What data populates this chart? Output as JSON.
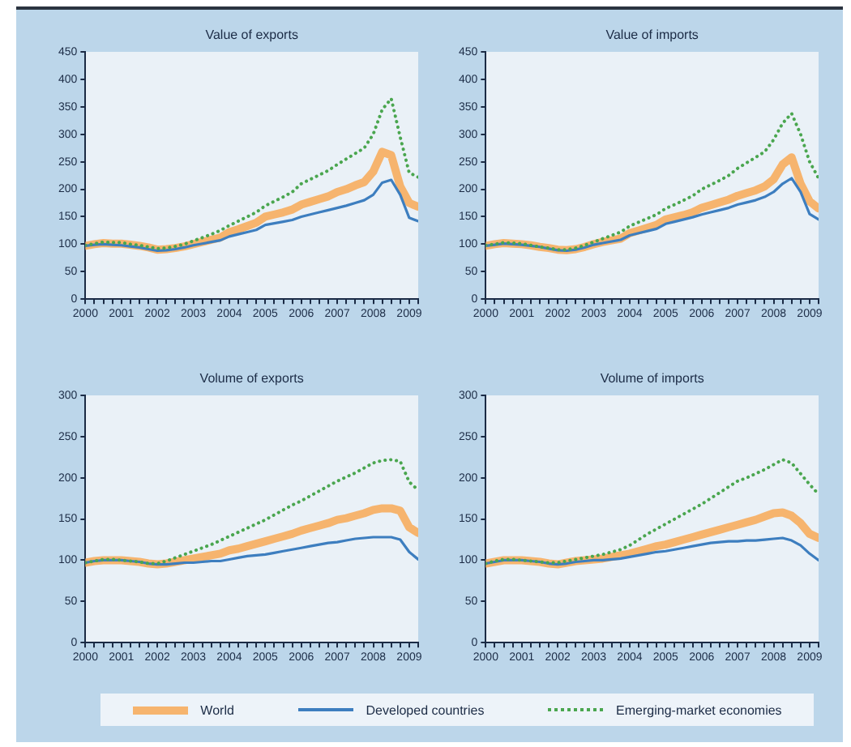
{
  "chart_data": [
    {
      "type": "line",
      "title": "Value of exports",
      "x": [
        2000,
        2000.25,
        2000.5,
        2000.75,
        2001,
        2001.25,
        2001.5,
        2001.75,
        2002,
        2002.25,
        2002.5,
        2002.75,
        2003,
        2003.25,
        2003.5,
        2003.75,
        2004,
        2004.25,
        2004.5,
        2004.75,
        2005,
        2005.25,
        2005.5,
        2005.75,
        2006,
        2006.25,
        2006.5,
        2006.75,
        2007,
        2007.25,
        2007.5,
        2007.75,
        2008,
        2008.25,
        2008.5,
        2008.75,
        2009,
        2009.25
      ],
      "xlim": [
        2000,
        2009.25
      ],
      "xticks": [
        2000,
        {
          "value": 2000.25,
          "label": null
        },
        {
          "value": 2000.5,
          "label": null
        },
        {
          "value": 2000.75,
          "label": null
        },
        2001,
        {
          "value": 2001.25,
          "label": null
        },
        {
          "value": 2001.5,
          "label": null
        },
        {
          "value": 2001.75,
          "label": null
        },
        2002,
        {
          "value": 2002.25,
          "label": null
        },
        {
          "value": 2002.5,
          "label": null
        },
        {
          "value": 2002.75,
          "label": null
        },
        2003,
        {
          "value": 2003.25,
          "label": null
        },
        {
          "value": 2003.5,
          "label": null
        },
        {
          "value": 2003.75,
          "label": null
        },
        2004,
        {
          "value": 2004.25,
          "label": null
        },
        {
          "value": 2004.5,
          "label": null
        },
        {
          "value": 2004.75,
          "label": null
        },
        2005,
        {
          "value": 2005.25,
          "label": null
        },
        {
          "value": 2005.5,
          "label": null
        },
        {
          "value": 2005.75,
          "label": null
        },
        2006,
        {
          "value": 2006.25,
          "label": null
        },
        {
          "value": 2006.5,
          "label": null
        },
        {
          "value": 2006.75,
          "label": null
        },
        2007,
        {
          "value": 2007.25,
          "label": null
        },
        {
          "value": 2007.5,
          "label": null
        },
        {
          "value": 2007.75,
          "label": null
        },
        2008,
        {
          "value": 2008.25,
          "label": null
        },
        {
          "value": 2008.5,
          "label": null
        },
        {
          "value": 2008.75,
          "label": null
        },
        2009,
        {
          "value": 2009.25,
          "label": null
        }
      ],
      "ylim": [
        0,
        450
      ],
      "yticks": [
        0,
        50,
        100,
        150,
        200,
        250,
        300,
        350,
        400,
        450
      ],
      "series": [
        {
          "color": "#f6b46e",
          "line_style": "solid",
          "values": [
            97,
            100,
            102,
            101,
            101,
            99,
            97,
            94,
            90,
            91,
            93,
            96,
            100,
            104,
            108,
            112,
            122,
            127,
            133,
            139,
            150,
            154,
            158,
            163,
            172,
            177,
            182,
            187,
            195,
            200,
            207,
            213,
            232,
            268,
            262,
            205,
            175,
            168
          ]
        },
        {
          "color": "#3d7ebf",
          "line_style": "solid",
          "values": [
            97,
            99,
            100,
            99,
            98,
            96,
            94,
            91,
            88,
            89,
            91,
            94,
            98,
            101,
            104,
            107,
            114,
            118,
            122,
            126,
            135,
            138,
            141,
            144,
            150,
            154,
            158,
            162,
            166,
            170,
            175,
            180,
            190,
            212,
            217,
            190,
            148,
            142
          ]
        },
        {
          "color": "#4aa64f",
          "line_style": "dotted",
          "values": [
            98,
            101,
            104,
            103,
            103,
            100,
            98,
            95,
            92,
            93,
            96,
            100,
            106,
            112,
            118,
            125,
            134,
            142,
            150,
            158,
            170,
            178,
            186,
            195,
            210,
            218,
            226,
            234,
            245,
            255,
            265,
            275,
            300,
            345,
            365,
            295,
            230,
            222
          ]
        }
      ]
    },
    {
      "type": "line",
      "title": "Value of imports",
      "x": [
        2000,
        2000.25,
        2000.5,
        2000.75,
        2001,
        2001.25,
        2001.5,
        2001.75,
        2002,
        2002.25,
        2002.5,
        2002.75,
        2003,
        2003.25,
        2003.5,
        2003.75,
        2004,
        2004.25,
        2004.5,
        2004.75,
        2005,
        2005.25,
        2005.5,
        2005.75,
        2006,
        2006.25,
        2006.5,
        2006.75,
        2007,
        2007.25,
        2007.5,
        2007.75,
        2008,
        2008.25,
        2008.5,
        2008.75,
        2009,
        2009.25
      ],
      "xlim": [
        2000,
        2009.25
      ],
      "xticks": [
        2000,
        {
          "value": 2000.25,
          "label": null
        },
        {
          "value": 2000.5,
          "label": null
        },
        {
          "value": 2000.75,
          "label": null
        },
        2001,
        {
          "value": 2001.25,
          "label": null
        },
        {
          "value": 2001.5,
          "label": null
        },
        {
          "value": 2001.75,
          "label": null
        },
        2002,
        {
          "value": 2002.25,
          "label": null
        },
        {
          "value": 2002.5,
          "label": null
        },
        {
          "value": 2002.75,
          "label": null
        },
        2003,
        {
          "value": 2003.25,
          "label": null
        },
        {
          "value": 2003.5,
          "label": null
        },
        {
          "value": 2003.75,
          "label": null
        },
        2004,
        {
          "value": 2004.25,
          "label": null
        },
        {
          "value": 2004.5,
          "label": null
        },
        {
          "value": 2004.75,
          "label": null
        },
        2005,
        {
          "value": 2005.25,
          "label": null
        },
        {
          "value": 2005.5,
          "label": null
        },
        {
          "value": 2005.75,
          "label": null
        },
        2006,
        {
          "value": 2006.25,
          "label": null
        },
        {
          "value": 2006.5,
          "label": null
        },
        {
          "value": 2006.75,
          "label": null
        },
        2007,
        {
          "value": 2007.25,
          "label": null
        },
        {
          "value": 2007.5,
          "label": null
        },
        {
          "value": 2007.75,
          "label": null
        },
        2008,
        {
          "value": 2008.25,
          "label": null
        },
        {
          "value": 2008.5,
          "label": null
        },
        {
          "value": 2008.75,
          "label": null
        },
        2009,
        {
          "value": 2009.25,
          "label": null
        }
      ],
      "ylim": [
        0,
        450
      ],
      "yticks": [
        0,
        50,
        100,
        150,
        200,
        250,
        300,
        350,
        400,
        450
      ],
      "series": [
        {
          "color": "#f6b46e",
          "line_style": "solid",
          "values": [
            97,
            100,
            102,
            101,
            100,
            98,
            95,
            93,
            90,
            89,
            91,
            95,
            100,
            104,
            107,
            110,
            120,
            125,
            130,
            135,
            145,
            149,
            153,
            158,
            166,
            171,
            176,
            181,
            188,
            193,
            198,
            205,
            218,
            245,
            258,
            210,
            178,
            165
          ]
        },
        {
          "color": "#3d7ebf",
          "line_style": "solid",
          "values": [
            97,
            99,
            101,
            100,
            99,
            97,
            95,
            92,
            89,
            88,
            90,
            94,
            99,
            102,
            105,
            108,
            116,
            120,
            124,
            128,
            137,
            141,
            145,
            149,
            154,
            158,
            162,
            166,
            172,
            176,
            180,
            186,
            195,
            210,
            220,
            195,
            155,
            145
          ]
        },
        {
          "color": "#4aa64f",
          "line_style": "dotted",
          "values": [
            98,
            100,
            103,
            102,
            101,
            98,
            95,
            93,
            90,
            90,
            93,
            98,
            104,
            110,
            116,
            122,
            133,
            140,
            147,
            154,
            165,
            172,
            180,
            188,
            200,
            208,
            216,
            225,
            238,
            248,
            258,
            268,
            290,
            320,
            338,
            300,
            250,
            220
          ]
        }
      ]
    },
    {
      "type": "line",
      "title": "Volume of exports",
      "x": [
        2000,
        2000.25,
        2000.5,
        2000.75,
        2001,
        2001.25,
        2001.5,
        2001.75,
        2002,
        2002.25,
        2002.5,
        2002.75,
        2003,
        2003.25,
        2003.5,
        2003.75,
        2004,
        2004.25,
        2004.5,
        2004.75,
        2005,
        2005.25,
        2005.5,
        2005.75,
        2006,
        2006.25,
        2006.5,
        2006.75,
        2007,
        2007.25,
        2007.5,
        2007.75,
        2008,
        2008.25,
        2008.5,
        2008.75,
        2009,
        2009.25
      ],
      "xlim": [
        2000,
        2009.25
      ],
      "xticks": [
        2000,
        {
          "value": 2000.25,
          "label": null
        },
        {
          "value": 2000.5,
          "label": null
        },
        {
          "value": 2000.75,
          "label": null
        },
        2001,
        {
          "value": 2001.25,
          "label": null
        },
        {
          "value": 2001.5,
          "label": null
        },
        {
          "value": 2001.75,
          "label": null
        },
        2002,
        {
          "value": 2002.25,
          "label": null
        },
        {
          "value": 2002.5,
          "label": null
        },
        {
          "value": 2002.75,
          "label": null
        },
        2003,
        {
          "value": 2003.25,
          "label": null
        },
        {
          "value": 2003.5,
          "label": null
        },
        {
          "value": 2003.75,
          "label": null
        },
        2004,
        {
          "value": 2004.25,
          "label": null
        },
        {
          "value": 2004.5,
          "label": null
        },
        {
          "value": 2004.75,
          "label": null
        },
        2005,
        {
          "value": 2005.25,
          "label": null
        },
        {
          "value": 2005.5,
          "label": null
        },
        {
          "value": 2005.75,
          "label": null
        },
        2006,
        {
          "value": 2006.25,
          "label": null
        },
        {
          "value": 2006.5,
          "label": null
        },
        {
          "value": 2006.75,
          "label": null
        },
        2007,
        {
          "value": 2007.25,
          "label": null
        },
        {
          "value": 2007.5,
          "label": null
        },
        {
          "value": 2007.75,
          "label": null
        },
        2008,
        {
          "value": 2008.25,
          "label": null
        },
        {
          "value": 2008.5,
          "label": null
        },
        {
          "value": 2008.75,
          "label": null
        },
        2009,
        {
          "value": 2009.25,
          "label": null
        }
      ],
      "ylim": [
        0,
        300
      ],
      "yticks": [
        0,
        50,
        100,
        150,
        200,
        250,
        300
      ],
      "series": [
        {
          "color": "#f6b46e",
          "line_style": "solid",
          "values": [
            97,
            99,
            100,
            100,
            100,
            99,
            98,
            96,
            95,
            96,
            98,
            100,
            102,
            104,
            106,
            108,
            112,
            114,
            117,
            120,
            123,
            126,
            129,
            132,
            136,
            139,
            142,
            145,
            149,
            151,
            154,
            157,
            161,
            163,
            163,
            160,
            140,
            133
          ]
        },
        {
          "color": "#3d7ebf",
          "line_style": "solid",
          "values": [
            97,
            99,
            100,
            100,
            100,
            99,
            98,
            96,
            95,
            95,
            96,
            97,
            97,
            98,
            99,
            99,
            101,
            103,
            105,
            106,
            107,
            109,
            111,
            113,
            115,
            117,
            119,
            121,
            122,
            124,
            126,
            127,
            128,
            128,
            128,
            125,
            110,
            101
          ]
        },
        {
          "color": "#4aa64f",
          "line_style": "dotted",
          "values": [
            97,
            99,
            101,
            101,
            100,
            99,
            98,
            96,
            96,
            99,
            103,
            107,
            111,
            115,
            119,
            124,
            129,
            134,
            139,
            144,
            149,
            155,
            161,
            167,
            172,
            178,
            184,
            190,
            196,
            201,
            206,
            212,
            218,
            221,
            222,
            220,
            195,
            185
          ]
        }
      ]
    },
    {
      "type": "line",
      "title": "Volume of imports",
      "legend": "bottom",
      "x": [
        2000,
        2000.25,
        2000.5,
        2000.75,
        2001,
        2001.25,
        2001.5,
        2001.75,
        2002,
        2002.25,
        2002.5,
        2002.75,
        2003,
        2003.25,
        2003.5,
        2003.75,
        2004,
        2004.25,
        2004.5,
        2004.75,
        2005,
        2005.25,
        2005.5,
        2005.75,
        2006,
        2006.25,
        2006.5,
        2006.75,
        2007,
        2007.25,
        2007.5,
        2007.75,
        2008,
        2008.25,
        2008.5,
        2008.75,
        2009,
        2009.25
      ],
      "xlim": [
        2000,
        2009.25
      ],
      "xticks": [
        2000,
        {
          "value": 2000.25,
          "label": null
        },
        {
          "value": 2000.5,
          "label": null
        },
        {
          "value": 2000.75,
          "label": null
        },
        2001,
        {
          "value": 2001.25,
          "label": null
        },
        {
          "value": 2001.5,
          "label": null
        },
        {
          "value": 2001.75,
          "label": null
        },
        2002,
        {
          "value": 2002.25,
          "label": null
        },
        {
          "value": 2002.5,
          "label": null
        },
        {
          "value": 2002.75,
          "label": null
        },
        2003,
        {
          "value": 2003.25,
          "label": null
        },
        {
          "value": 2003.5,
          "label": null
        },
        {
          "value": 2003.75,
          "label": null
        },
        2004,
        {
          "value": 2004.25,
          "label": null
        },
        {
          "value": 2004.5,
          "label": null
        },
        {
          "value": 2004.75,
          "label": null
        },
        2005,
        {
          "value": 2005.25,
          "label": null
        },
        {
          "value": 2005.5,
          "label": null
        },
        {
          "value": 2005.75,
          "label": null
        },
        2006,
        {
          "value": 2006.25,
          "label": null
        },
        {
          "value": 2006.5,
          "label": null
        },
        {
          "value": 2006.75,
          "label": null
        },
        2007,
        {
          "value": 2007.25,
          "label": null
        },
        {
          "value": 2007.5,
          "label": null
        },
        {
          "value": 2007.75,
          "label": null
        },
        2008,
        {
          "value": 2008.25,
          "label": null
        },
        {
          "value": 2008.5,
          "label": null
        },
        {
          "value": 2008.75,
          "label": null
        },
        2009,
        {
          "value": 2009.25,
          "label": null
        }
      ],
      "ylim": [
        0,
        300
      ],
      "yticks": [
        0,
        50,
        100,
        150,
        200,
        250,
        300
      ],
      "series": [
        {
          "name": "World",
          "color": "#f6b46e",
          "line_style": "solid",
          "values": [
            96,
            98,
            100,
            100,
            100,
            99,
            98,
            96,
            95,
            97,
            99,
            100,
            101,
            102,
            104,
            106,
            108,
            111,
            114,
            117,
            119,
            122,
            125,
            128,
            131,
            134,
            137,
            140,
            143,
            146,
            149,
            153,
            157,
            158,
            154,
            145,
            132,
            127
          ]
        },
        {
          "name": "Developed countries",
          "color": "#3d7ebf",
          "line_style": "solid",
          "values": [
            96,
            98,
            100,
            100,
            100,
            99,
            98,
            96,
            95,
            96,
            98,
            99,
            100,
            100,
            101,
            102,
            104,
            106,
            108,
            110,
            111,
            113,
            115,
            117,
            119,
            121,
            122,
            123,
            123,
            124,
            124,
            125,
            126,
            127,
            124,
            118,
            108,
            100
          ]
        },
        {
          "name": "Emerging-market economies",
          "color": "#4aa64f",
          "line_style": "dotted",
          "values": [
            96,
            99,
            101,
            101,
            100,
            99,
            98,
            97,
            97,
            99,
            101,
            103,
            105,
            107,
            110,
            113,
            118,
            125,
            132,
            138,
            144,
            150,
            156,
            162,
            168,
            175,
            182,
            189,
            196,
            200,
            205,
            210,
            216,
            222,
            218,
            205,
            192,
            180
          ]
        }
      ]
    }
  ]
}
